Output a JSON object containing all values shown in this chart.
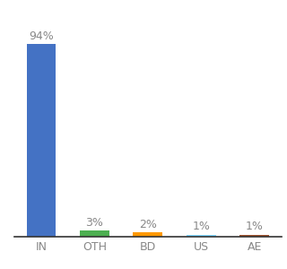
{
  "categories": [
    "IN",
    "OTH",
    "BD",
    "US",
    "AE"
  ],
  "values": [
    94,
    3,
    2,
    1,
    1
  ],
  "labels": [
    "94%",
    "3%",
    "2%",
    "1%",
    "1%"
  ],
  "bar_colors": [
    "#4472c4",
    "#4caf50",
    "#ff9800",
    "#80d8ff",
    "#a0522d"
  ],
  "background_color": "#ffffff",
  "label_color": "#888888",
  "ylim": [
    0,
    105
  ],
  "bar_width": 0.55
}
